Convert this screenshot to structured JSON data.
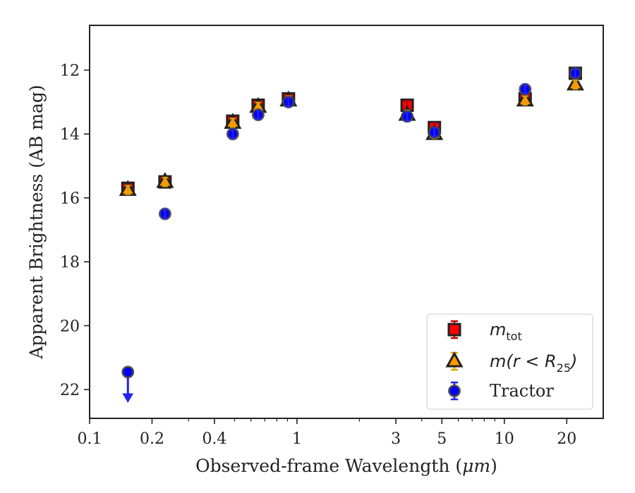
{
  "chart_data": {
    "type": "scatter",
    "xlabel_prefix": "Observed-frame Wavelength (",
    "xlabel_unit": "μm",
    "xlabel_suffix": ")",
    "ylabel": "Apparent Brightness (AB mag)",
    "x_scale": "log",
    "xlim": [
      0.1,
      30
    ],
    "ylim": [
      22.9,
      10.6
    ],
    "y_inverted": true,
    "x_ticks": [
      0.1,
      0.2,
      0.4,
      1,
      3,
      5,
      10,
      20
    ],
    "x_tick_labels": [
      "0.1",
      "0.2",
      "0.4",
      "1",
      "3",
      "5",
      "10",
      "20"
    ],
    "y_ticks": [
      12,
      14,
      16,
      18,
      20,
      22
    ],
    "y_tick_labels": [
      "12",
      "14",
      "16",
      "18",
      "20",
      "22"
    ],
    "grid": false,
    "legend_position": "lower-right",
    "series": [
      {
        "key": "mtot",
        "name_main": "m",
        "name_sub": "tot",
        "marker": "square",
        "face_color": "#ff0000",
        "edge_color": "#222222",
        "error_color": "#cc0000",
        "points": [
          {
            "x": 0.153,
            "y": 15.7
          },
          {
            "x": 0.231,
            "y": 15.5
          },
          {
            "x": 0.49,
            "y": 13.6
          },
          {
            "x": 0.65,
            "y": 13.1
          },
          {
            "x": 0.91,
            "y": 12.9
          },
          {
            "x": 3.4,
            "y": 13.1
          },
          {
            "x": 4.6,
            "y": 13.8
          },
          {
            "x": 12.6,
            "y": 12.9
          },
          {
            "x": 22.0,
            "y": 12.1
          }
        ]
      },
      {
        "key": "mr25",
        "name_main": "m",
        "name_paren": "(r < R",
        "name_sub": "25",
        "name_close": ")",
        "marker": "triangle",
        "face_color": "#ff9900",
        "edge_color": "#222222",
        "error_color": "#e5a000",
        "points": [
          {
            "x": 0.153,
            "y": 15.75
          },
          {
            "x": 0.231,
            "y": 15.5
          },
          {
            "x": 0.49,
            "y": 13.65
          },
          {
            "x": 0.65,
            "y": 13.15
          },
          {
            "x": 0.91,
            "y": 12.95
          },
          {
            "x": 3.4,
            "y": 13.4
          },
          {
            "x": 4.6,
            "y": 14.0
          },
          {
            "x": 12.6,
            "y": 12.95
          },
          {
            "x": 22.0,
            "y": 12.45
          }
        ]
      },
      {
        "key": "tractor",
        "name": "Tractor",
        "marker": "circle",
        "face_color": "#0000ff",
        "edge_color": "#444444",
        "error_color": "#2222ee",
        "points": [
          {
            "x": 0.153,
            "y": 21.45,
            "upper_limit": true,
            "arrow_to": 22.35
          },
          {
            "x": 0.231,
            "y": 16.5
          },
          {
            "x": 0.49,
            "y": 14.0
          },
          {
            "x": 0.65,
            "y": 13.4
          },
          {
            "x": 0.91,
            "y": 13.0
          },
          {
            "x": 3.4,
            "y": 13.45
          },
          {
            "x": 4.6,
            "y": 13.95
          },
          {
            "x": 12.6,
            "y": 12.6
          },
          {
            "x": 22.0,
            "y": 12.1
          }
        ]
      }
    ]
  }
}
